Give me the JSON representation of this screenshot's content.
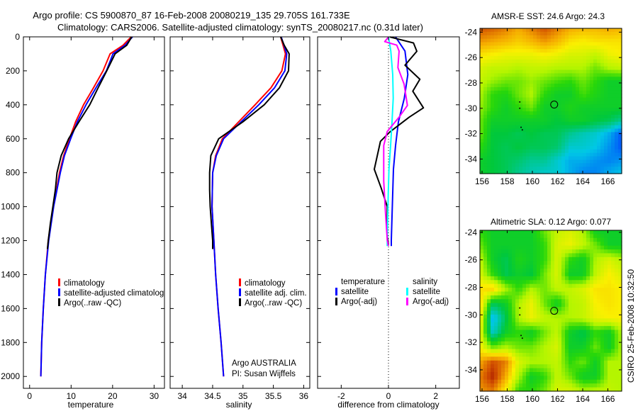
{
  "title": {
    "line1": "Argo profile: CS 5900870_87 16-Feb-2008 20080219_135 29.705S 161.733E",
    "line2": "Climatology: CARS2006. Satellite-adjusted climatology: synTS_20080217.nc (0.31d later)"
  },
  "side_label": "CSIRO 25-Feb-2008 10:32:50",
  "colors": {
    "climatology": "#ff0000",
    "satellite": "#0000ff",
    "argo": "#000000",
    "sal_satellite": "#00ffff",
    "sal_argo": "#ff00ff"
  },
  "chart_data": [
    {
      "type": "line",
      "xlabel": "temperature",
      "ylabel": "",
      "xlim": [
        -1.5,
        32.5
      ],
      "ylim": [
        0,
        2070
      ],
      "y_reversed": true,
      "xticks": [
        "0",
        "10",
        "20",
        "30"
      ],
      "xtick_values": [
        0,
        10,
        20,
        30
      ],
      "yticks": [
        "0",
        "200",
        "400",
        "600",
        "800",
        "1000",
        "1200",
        "1400",
        "1600",
        "1800",
        "2000"
      ],
      "ytick_values": [
        0,
        200,
        400,
        600,
        800,
        1000,
        1200,
        1400,
        1600,
        1800,
        2000
      ],
      "legend": [
        "climatology",
        "satellite-adjusted climatology",
        "Argo(..raw -QC)"
      ],
      "series": [
        {
          "name": "climatology",
          "color": "#ff0000",
          "depth": [
            0,
            50,
            100,
            200,
            300,
            400,
            500,
            600,
            700,
            800,
            900,
            1000,
            1200,
            1400,
            1600,
            1800,
            2000
          ],
          "values": [
            24.5,
            22.5,
            19.4,
            17.7,
            15.4,
            13.0,
            11.1,
            9.6,
            8.2,
            7.2,
            6.5,
            5.7,
            4.5,
            3.8,
            3.3,
            2.9,
            2.7
          ]
        },
        {
          "name": "satellite-adjusted climatology",
          "color": "#0000ff",
          "depth": [
            0,
            50,
            100,
            200,
            300,
            400,
            500,
            600,
            700,
            800,
            900,
            1000,
            1200,
            1400,
            1600,
            1800,
            2000
          ],
          "values": [
            24.8,
            23.0,
            20.1,
            18.5,
            16.0,
            13.6,
            11.5,
            9.9,
            8.4,
            7.4,
            6.6,
            5.8,
            4.6,
            3.8,
            3.3,
            2.9,
            2.7
          ]
        },
        {
          "name": "Argo(..raw -QC)",
          "color": "#000000",
          "depth": [
            0,
            50,
            100,
            200,
            300,
            400,
            500,
            600,
            700,
            800,
            900,
            1000,
            1100,
            1200,
            1250
          ],
          "values": [
            24.6,
            23.4,
            20.6,
            18.6,
            16.5,
            14.5,
            11.9,
            9.4,
            7.6,
            6.6,
            6.2,
            5.6,
            5.0,
            4.5,
            4.3
          ]
        }
      ]
    },
    {
      "type": "line",
      "xlabel": "salinity",
      "xlim": [
        33.8,
        36.1
      ],
      "ylim": [
        0,
        2070
      ],
      "y_reversed": true,
      "xticks": [
        "34",
        "34.5",
        "35",
        "35.5",
        "36"
      ],
      "xtick_values": [
        34,
        34.5,
        35,
        35.5,
        36
      ],
      "legend": [
        "climatology",
        "satellite adj. clim.",
        "Argo(..raw -QC)"
      ],
      "annotation": [
        "Argo AUSTRALIA",
        "PI: Susan Wijffels"
      ],
      "series": [
        {
          "name": "climatology",
          "color": "#ff0000",
          "depth": [
            0,
            100,
            200,
            300,
            400,
            500,
            600,
            700,
            800,
            1000,
            1200,
            1400,
            1600,
            1800,
            2000
          ],
          "values": [
            35.62,
            35.7,
            35.64,
            35.46,
            35.2,
            34.93,
            34.66,
            34.55,
            34.5,
            34.49,
            34.52,
            34.55,
            34.59,
            34.64,
            34.68
          ]
        },
        {
          "name": "satellite adj. clim.",
          "color": "#0000ff",
          "depth": [
            0,
            100,
            200,
            300,
            400,
            500,
            600,
            700,
            800,
            1000,
            1200,
            1400,
            1600,
            1800,
            2000
          ],
          "values": [
            35.63,
            35.72,
            35.69,
            35.52,
            35.26,
            34.97,
            34.68,
            34.56,
            34.5,
            34.49,
            34.52,
            34.55,
            34.59,
            34.64,
            34.68
          ]
        },
        {
          "name": "Argo(..raw -QC)",
          "color": "#000000",
          "depth": [
            0,
            50,
            100,
            200,
            300,
            400,
            500,
            600,
            700,
            800,
            900,
            1000,
            1100,
            1200,
            1250
          ],
          "values": [
            35.62,
            35.68,
            35.76,
            35.75,
            35.6,
            35.35,
            35.0,
            34.6,
            34.47,
            34.45,
            34.45,
            34.46,
            34.48,
            34.5,
            34.5
          ]
        }
      ]
    },
    {
      "type": "line",
      "xlabel": "difference from climatology",
      "xlim": [
        -3,
        3
      ],
      "ylim": [
        0,
        2070
      ],
      "y_reversed": true,
      "xticks": [
        "-2",
        "0",
        "2"
      ],
      "xtick_values": [
        -2,
        0,
        2
      ],
      "legend_titles": [
        "temperature",
        "salinity"
      ],
      "legend": [
        "satellite",
        "Argo(-adj)",
        "satellite",
        "Argo(-adj)"
      ],
      "series": [
        {
          "name": "temperature satellite",
          "color": "#0000ff",
          "depth": [
            1,
            84,
            222,
            362,
            501,
            640,
            780,
            1058,
            1197,
            1232
          ],
          "values": [
            0.3,
            0.7,
            0.82,
            0.67,
            0.42,
            0.3,
            0.21,
            0.15,
            0.12,
            0.12
          ]
        },
        {
          "name": "temperature Argo(-adj)",
          "color": "#000000",
          "depth": [
            1,
            36,
            85,
            167,
            250,
            320,
            418,
            473,
            560,
            615,
            780,
            890,
            1000,
            1170,
            1225
          ],
          "values": [
            0.06,
            1.06,
            1.2,
            0.7,
            1.33,
            1.03,
            1.48,
            0.88,
            0.06,
            -0.34,
            -0.6,
            -0.31,
            -0.05,
            -0.05,
            0.0
          ]
        },
        {
          "name": "salinity satellite",
          "color": "#00ffff",
          "depth": [
            1,
            84,
            222,
            362,
            501,
            640,
            780,
            919,
            1058,
            1197,
            1232
          ],
          "values": [
            0.0,
            0.1,
            0.18,
            0.2,
            0.15,
            0.09,
            0.02,
            -0.01,
            -0.03,
            -0.05,
            -0.05
          ]
        },
        {
          "name": "salinity Argo(-adj)",
          "color": "#ff00ff",
          "depth": [
            1,
            28,
            49,
            84,
            181,
            278,
            404,
            473,
            557,
            640,
            849,
            1030,
            1197,
            1232
          ],
          "values": [
            0.0,
            -0.16,
            0.35,
            0.45,
            0.4,
            0.66,
            0.8,
            0.45,
            -0.05,
            -0.2,
            -0.2,
            -0.13,
            -0.05,
            0.0
          ]
        }
      ]
    },
    {
      "type": "heatmap",
      "title": "AMSR-E SST: 24.6 Argo: 24.3",
      "xlim": [
        155.83,
        167.1
      ],
      "ylim": [
        -35.15,
        -23.7
      ],
      "xticks": [
        "156",
        "158",
        "160",
        "162",
        "164",
        "166"
      ],
      "xtick_values": [
        156,
        158,
        160,
        162,
        164,
        166
      ],
      "yticks": [
        "-24",
        "-26",
        "-28",
        "-30",
        "-32",
        "-34"
      ],
      "ytick_values": [
        -24,
        -26,
        -28,
        -30,
        -32,
        -34
      ],
      "profile_location": [
        161.733,
        -29.705
      ],
      "track_points": [
        [
          159.0,
          -29.5
        ],
        [
          159.0,
          -30.0
        ],
        [
          159.1,
          -31.5
        ],
        [
          159.2,
          -31.7
        ]
      ],
      "grid_normalized": [
        [
          0.9,
          0.88,
          0.85,
          0.8,
          0.85,
          0.9,
          0.85,
          0.8,
          0.78,
          0.78,
          0.8,
          0.78
        ],
        [
          0.82,
          0.8,
          0.78,
          0.75,
          0.78,
          0.82,
          0.78,
          0.72,
          0.7,
          0.72,
          0.72,
          0.72
        ],
        [
          0.72,
          0.7,
          0.68,
          0.68,
          0.68,
          0.7,
          0.68,
          0.65,
          0.65,
          0.62,
          0.68,
          0.7
        ],
        [
          0.65,
          0.62,
          0.62,
          0.6,
          0.62,
          0.62,
          0.6,
          0.6,
          0.6,
          0.55,
          0.6,
          0.62
        ],
        [
          0.62,
          0.58,
          0.55,
          0.55,
          0.58,
          0.55,
          0.52,
          0.5,
          0.55,
          0.5,
          0.45,
          0.45
        ],
        [
          0.6,
          0.5,
          0.48,
          0.55,
          0.6,
          0.5,
          0.45,
          0.45,
          0.52,
          0.48,
          0.45,
          0.45
        ],
        [
          0.58,
          0.5,
          0.45,
          0.5,
          0.55,
          0.45,
          0.45,
          0.48,
          0.45,
          0.45,
          0.45,
          0.45
        ],
        [
          0.55,
          0.45,
          0.45,
          0.45,
          0.45,
          0.45,
          0.42,
          0.45,
          0.45,
          0.42,
          0.4,
          0.35
        ],
        [
          0.55,
          0.42,
          0.42,
          0.4,
          0.42,
          0.4,
          0.4,
          0.35,
          0.32,
          0.3,
          0.25,
          0.15
        ],
        [
          0.5,
          0.42,
          0.4,
          0.42,
          0.4,
          0.4,
          0.38,
          0.3,
          0.3,
          0.28,
          0.22,
          0.15
        ],
        [
          0.45,
          0.42,
          0.4,
          0.38,
          0.35,
          0.35,
          0.3,
          0.25,
          0.25,
          0.22,
          0.2,
          0.22
        ],
        [
          0.45,
          0.42,
          0.4,
          0.35,
          0.32,
          0.3,
          0.3,
          0.25,
          0.2,
          0.2,
          0.25,
          0.28
        ]
      ]
    },
    {
      "type": "heatmap",
      "title": "Altimetric SLA: 0.12 Argo: 0.077",
      "xlim": [
        155.83,
        167.1
      ],
      "ylim": [
        -35.55,
        -23.85
      ],
      "xticks": [
        "156",
        "158",
        "160",
        "162",
        "164",
        "166"
      ],
      "xtick_values": [
        156,
        158,
        160,
        162,
        164,
        166
      ],
      "yticks": [
        "-24",
        "-26",
        "-28",
        "-30",
        "-32",
        "-34"
      ],
      "ytick_values": [
        -24,
        -26,
        -28,
        -30,
        -32,
        -34
      ],
      "profile_location": [
        161.733,
        -29.705
      ],
      "track_points": [
        [
          159.0,
          -29.5
        ],
        [
          159.0,
          -30.0
        ],
        [
          159.1,
          -31.5
        ],
        [
          159.2,
          -31.7
        ]
      ],
      "grid_normalized": [
        [
          0.5,
          0.45,
          0.45,
          0.45,
          0.45,
          0.55,
          0.62,
          0.65,
          0.6,
          0.45,
          0.45,
          0.45
        ],
        [
          0.55,
          0.45,
          0.45,
          0.45,
          0.45,
          0.5,
          0.65,
          0.68,
          0.62,
          0.55,
          0.45,
          0.45
        ],
        [
          0.62,
          0.45,
          0.4,
          0.48,
          0.45,
          0.5,
          0.65,
          0.5,
          0.45,
          0.6,
          0.65,
          0.6
        ],
        [
          0.65,
          0.5,
          0.4,
          0.45,
          0.42,
          0.55,
          0.65,
          0.45,
          0.45,
          0.62,
          0.7,
          0.65
        ],
        [
          0.72,
          0.75,
          0.6,
          0.5,
          0.6,
          0.55,
          0.62,
          0.62,
          0.65,
          0.72,
          0.72,
          0.7
        ],
        [
          0.75,
          0.4,
          0.45,
          0.6,
          0.68,
          0.55,
          0.45,
          0.6,
          0.62,
          0.7,
          0.72,
          0.7
        ],
        [
          0.72,
          0.25,
          0.4,
          0.6,
          0.68,
          0.62,
          0.6,
          0.6,
          0.62,
          0.68,
          0.7,
          0.7
        ],
        [
          0.68,
          0.3,
          0.45,
          0.5,
          0.45,
          0.55,
          0.62,
          0.45,
          0.4,
          0.5,
          0.45,
          0.6
        ],
        [
          0.7,
          0.55,
          0.6,
          0.55,
          0.55,
          0.6,
          0.65,
          0.45,
          0.45,
          0.55,
          0.45,
          0.6
        ],
        [
          0.8,
          0.9,
          0.85,
          0.65,
          0.6,
          0.6,
          0.62,
          0.5,
          0.55,
          0.45,
          0.6,
          0.6
        ],
        [
          0.85,
          0.95,
          0.8,
          0.6,
          0.45,
          0.5,
          0.62,
          0.55,
          0.45,
          0.45,
          0.6,
          0.6
        ],
        [
          0.82,
          0.85,
          0.7,
          0.5,
          0.5,
          0.55,
          0.65,
          0.65,
          0.6,
          0.62,
          0.62,
          0.6
        ]
      ]
    }
  ]
}
